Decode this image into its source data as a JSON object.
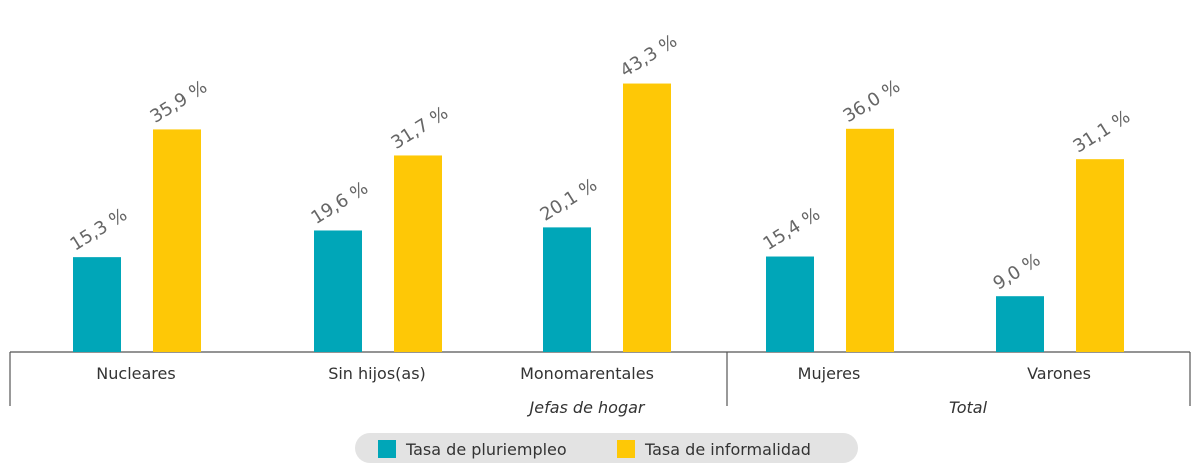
{
  "chart_data": {
    "type": "bar",
    "categories": [
      "Nucleares",
      "Sin hijos(as)",
      "Monomarentales",
      "Mujeres",
      "Varones"
    ],
    "groups": [
      {
        "name": "Jefas de hogar",
        "count": 3
      },
      {
        "name": "Total",
        "count": 2
      }
    ],
    "series": [
      {
        "name": "Tasa de pluriempleo",
        "color": "#00a6b8",
        "values": [
          15.3,
          19.6,
          20.1,
          15.4,
          9.0
        ],
        "value_labels": [
          "15,3 %",
          "19,6 %",
          "20,1 %",
          "15,4 %",
          "9,0 %"
        ]
      },
      {
        "name": "Tasa de informalidad",
        "color": "#fec806",
        "values": [
          35.9,
          31.7,
          43.3,
          36.0,
          31.1
        ],
        "value_labels": [
          "35,9 %",
          "31,7 %",
          "43,3 %",
          "36,0 %",
          "31,1 %"
        ]
      }
    ]
  }
}
